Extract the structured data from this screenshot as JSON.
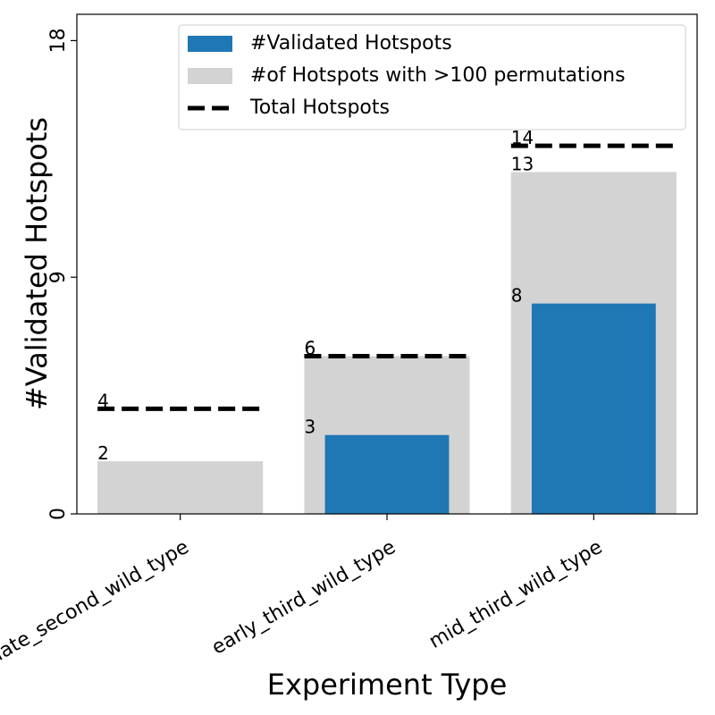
{
  "chart_data": {
    "type": "bar",
    "categories": [
      "late_second_wild_type",
      "early_third_wild_type",
      "mid_third_wild_type"
    ],
    "series": [
      {
        "name": "#of Hotspots with >100 permutations",
        "kind": "bar-wide",
        "color": "#d3d3d3",
        "values": [
          2,
          6,
          13
        ]
      },
      {
        "name": "#Validated Hotspots",
        "kind": "bar-narrow",
        "color": "#1f77b4",
        "values": [
          0,
          3,
          8
        ]
      },
      {
        "name": "Total Hotspots",
        "kind": "dashed-line",
        "color": "#000000",
        "values": [
          4,
          6,
          14
        ]
      }
    ],
    "legend_order": [
      1,
      0,
      2
    ],
    "data_labels": {
      "validated": [
        "",
        "3",
        "8"
      ],
      "permutations": [
        "2",
        "6",
        "13"
      ],
      "total": [
        "4",
        "6",
        "14"
      ]
    },
    "xlabel": "Experiment Type",
    "ylabel": "#Validated Hotspots",
    "yticks": [
      0,
      9,
      18
    ],
    "ytick_labels": [
      "0",
      "9",
      "18"
    ],
    "ylim": [
      0,
      19
    ],
    "grid": false,
    "legend_position": "top-right"
  }
}
